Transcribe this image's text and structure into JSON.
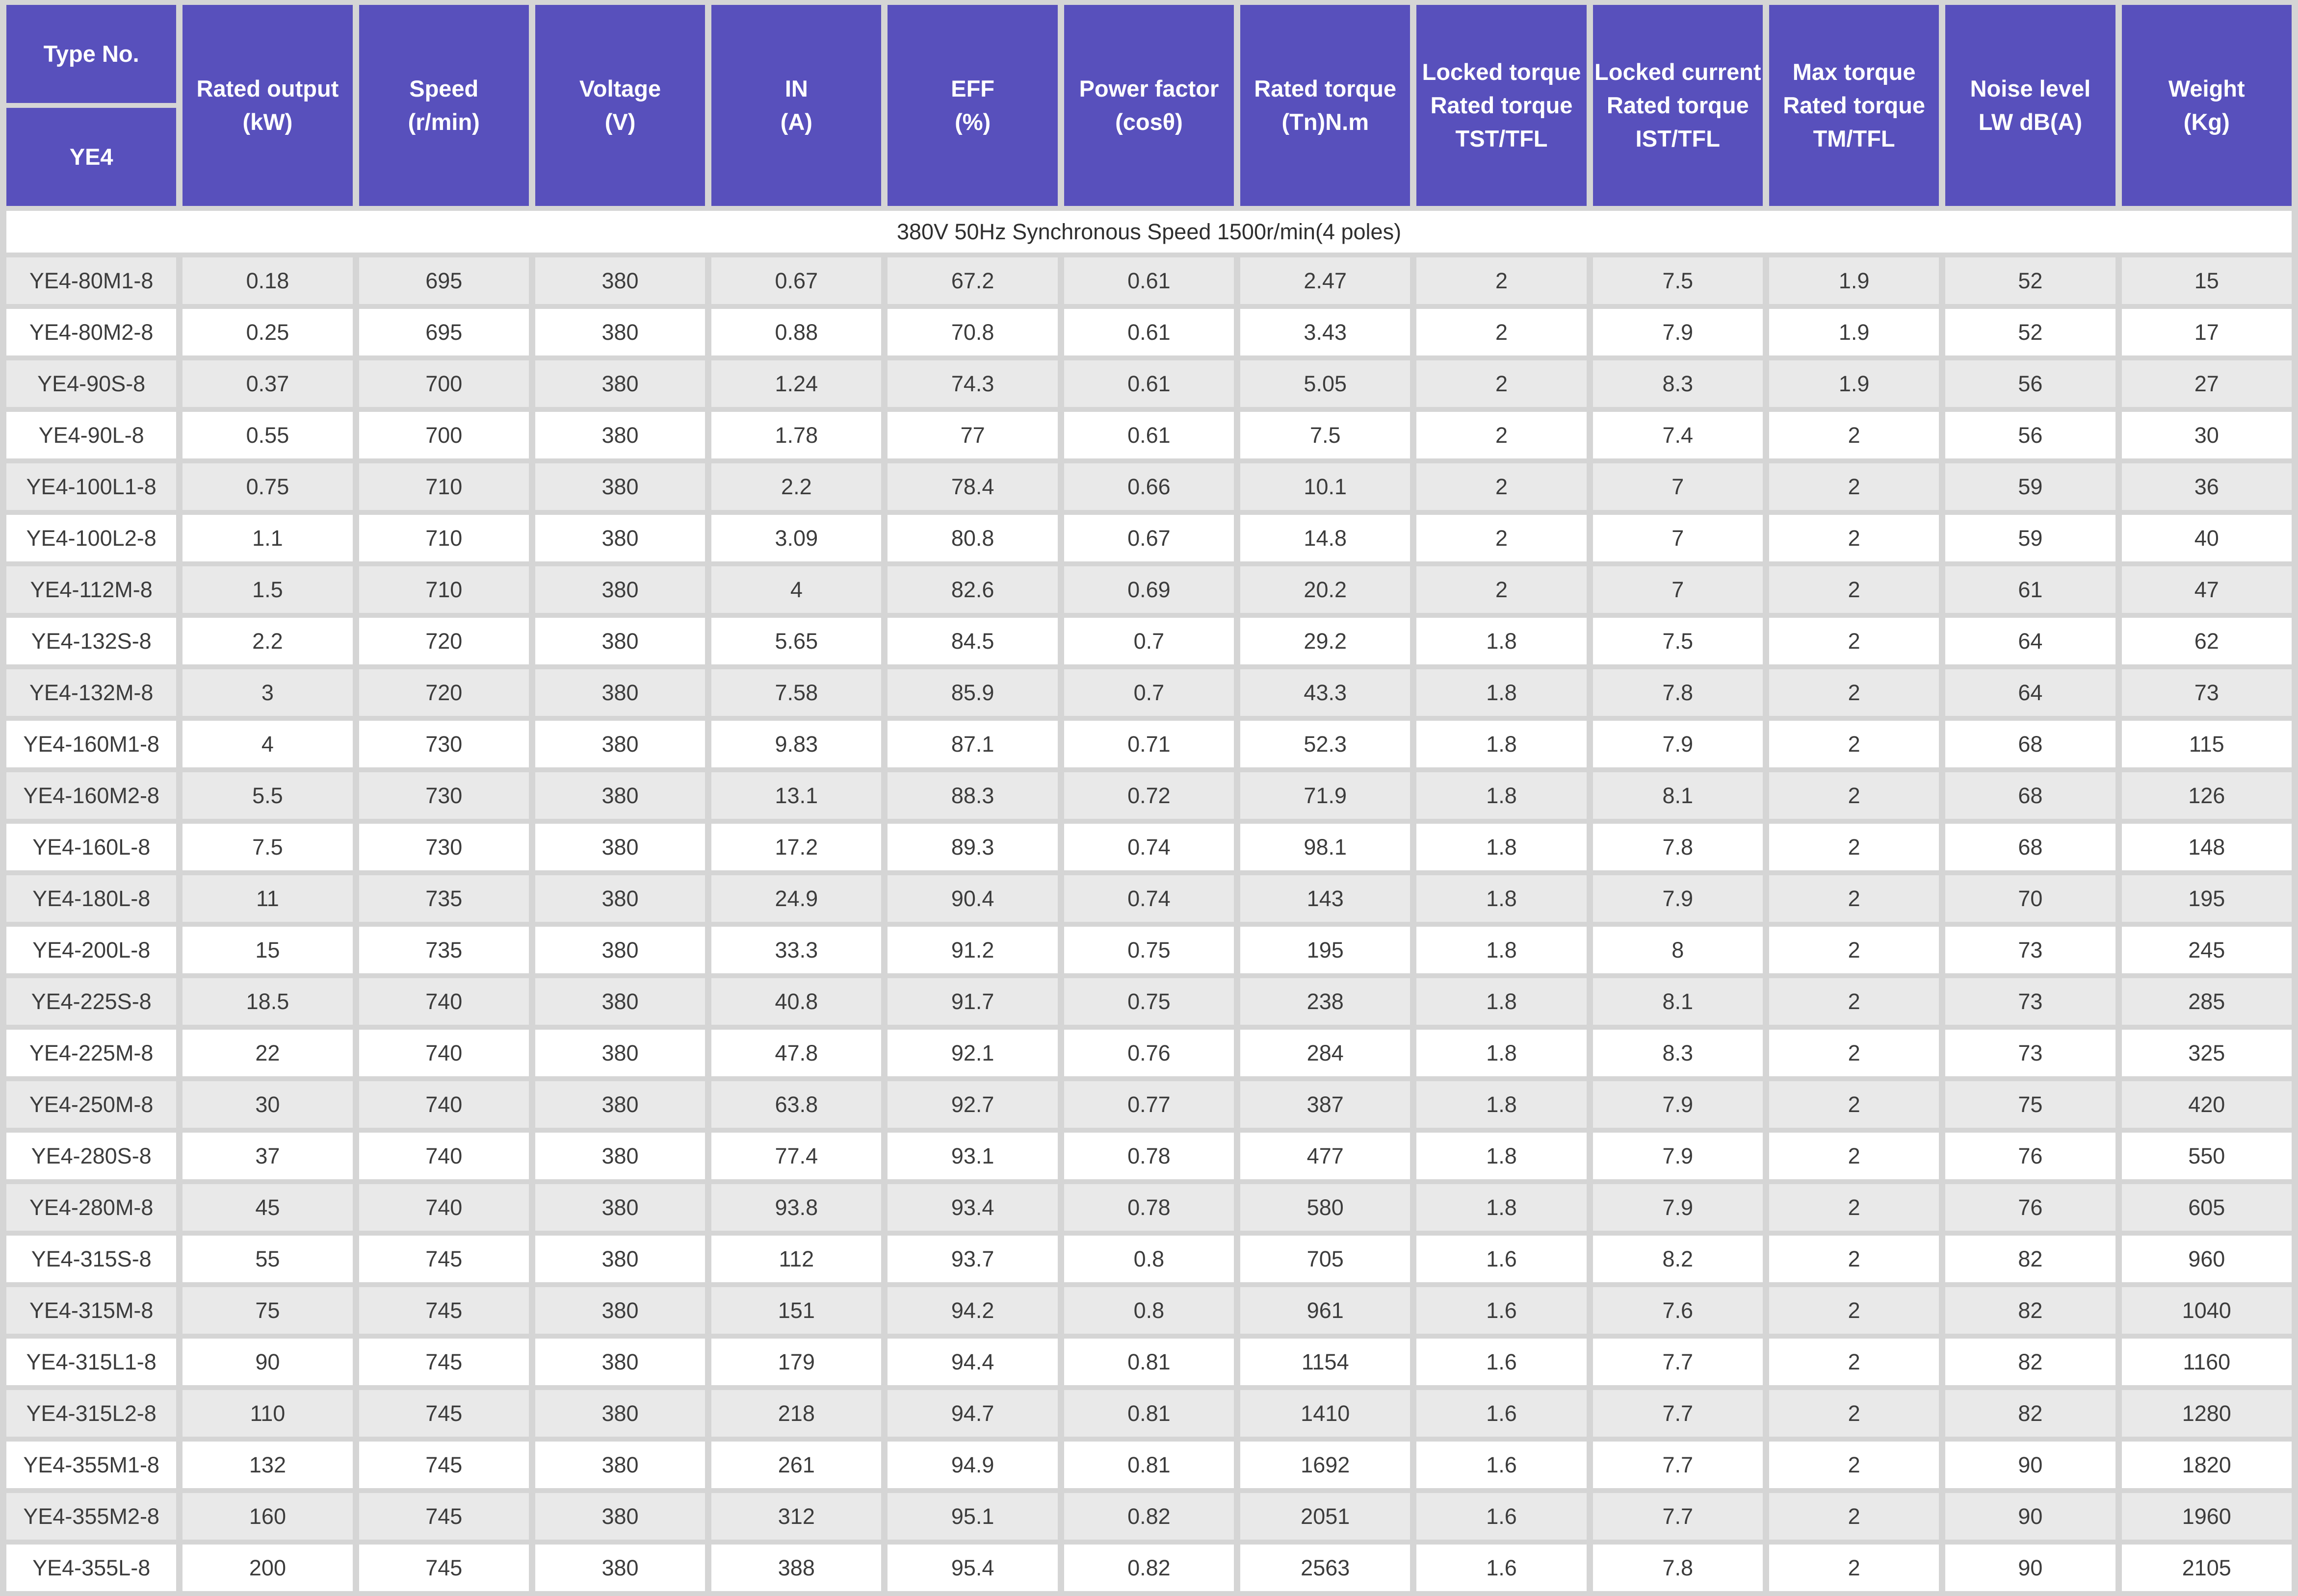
{
  "colors": {
    "header_bg": "#5850bc",
    "header_text": "#ffffff",
    "grid_bg": "#d5d5d5",
    "row_bg": "#ffffff",
    "row_alt_bg": "#e9e9e9",
    "text": "#3c3c3c",
    "subheader_text": "#2f2f2f"
  },
  "chart_data": {
    "type": "table",
    "header": {
      "type_no": "Type No.",
      "series": "YE4",
      "columns": [
        "Rated output\n(kW)",
        "Speed\n(r/min)",
        "Voltage\n(V)",
        "IN\n(A)",
        "EFF\n(%)",
        "Power factor\n(cosθ)",
        "Rated torque\n(Tn)N.m",
        "Locked torque\nRated torque\nTST/TFL",
        "Locked current\nRated torque\nIST/TFL",
        "Max torque\nRated torque\nTM/TFL",
        "Noise level\nLW dB(A)",
        "Weight\n(Kg)"
      ]
    },
    "band_title": "380V 50Hz Synchronous Speed 1500r/min(4 poles)",
    "rows": [
      {
        "type": "YE4-80M1-8",
        "values": [
          "0.18",
          "695",
          "380",
          "0.67",
          "67.2",
          "0.61",
          "2.47",
          "2",
          "7.5",
          "1.9",
          "52",
          "15"
        ]
      },
      {
        "type": "YE4-80M2-8",
        "values": [
          "0.25",
          "695",
          "380",
          "0.88",
          "70.8",
          "0.61",
          "3.43",
          "2",
          "7.9",
          "1.9",
          "52",
          "17"
        ]
      },
      {
        "type": "YE4-90S-8",
        "values": [
          "0.37",
          "700",
          "380",
          "1.24",
          "74.3",
          "0.61",
          "5.05",
          "2",
          "8.3",
          "1.9",
          "56",
          "27"
        ]
      },
      {
        "type": "YE4-90L-8",
        "values": [
          "0.55",
          "700",
          "380",
          "1.78",
          "77",
          "0.61",
          "7.5",
          "2",
          "7.4",
          "2",
          "56",
          "30"
        ]
      },
      {
        "type": "YE4-100L1-8",
        "values": [
          "0.75",
          "710",
          "380",
          "2.2",
          "78.4",
          "0.66",
          "10.1",
          "2",
          "7",
          "2",
          "59",
          "36"
        ]
      },
      {
        "type": "YE4-100L2-8",
        "values": [
          "1.1",
          "710",
          "380",
          "3.09",
          "80.8",
          "0.67",
          "14.8",
          "2",
          "7",
          "2",
          "59",
          "40"
        ]
      },
      {
        "type": "YE4-112M-8",
        "values": [
          "1.5",
          "710",
          "380",
          "4",
          "82.6",
          "0.69",
          "20.2",
          "2",
          "7",
          "2",
          "61",
          "47"
        ]
      },
      {
        "type": "YE4-132S-8",
        "values": [
          "2.2",
          "720",
          "380",
          "5.65",
          "84.5",
          "0.7",
          "29.2",
          "1.8",
          "7.5",
          "2",
          "64",
          "62"
        ]
      },
      {
        "type": "YE4-132M-8",
        "values": [
          "3",
          "720",
          "380",
          "7.58",
          "85.9",
          "0.7",
          "43.3",
          "1.8",
          "7.8",
          "2",
          "64",
          "73"
        ]
      },
      {
        "type": "YE4-160M1-8",
        "values": [
          "4",
          "730",
          "380",
          "9.83",
          "87.1",
          "0.71",
          "52.3",
          "1.8",
          "7.9",
          "2",
          "68",
          "115"
        ]
      },
      {
        "type": "YE4-160M2-8",
        "values": [
          "5.5",
          "730",
          "380",
          "13.1",
          "88.3",
          "0.72",
          "71.9",
          "1.8",
          "8.1",
          "2",
          "68",
          "126"
        ]
      },
      {
        "type": "YE4-160L-8",
        "values": [
          "7.5",
          "730",
          "380",
          "17.2",
          "89.3",
          "0.74",
          "98.1",
          "1.8",
          "7.8",
          "2",
          "68",
          "148"
        ]
      },
      {
        "type": "YE4-180L-8",
        "values": [
          "11",
          "735",
          "380",
          "24.9",
          "90.4",
          "0.74",
          "143",
          "1.8",
          "7.9",
          "2",
          "70",
          "195"
        ]
      },
      {
        "type": "YE4-200L-8",
        "values": [
          "15",
          "735",
          "380",
          "33.3",
          "91.2",
          "0.75",
          "195",
          "1.8",
          "8",
          "2",
          "73",
          "245"
        ]
      },
      {
        "type": "YE4-225S-8",
        "values": [
          "18.5",
          "740",
          "380",
          "40.8",
          "91.7",
          "0.75",
          "238",
          "1.8",
          "8.1",
          "2",
          "73",
          "285"
        ]
      },
      {
        "type": "YE4-225M-8",
        "values": [
          "22",
          "740",
          "380",
          "47.8",
          "92.1",
          "0.76",
          "284",
          "1.8",
          "8.3",
          "2",
          "73",
          "325"
        ]
      },
      {
        "type": "YE4-250M-8",
        "values": [
          "30",
          "740",
          "380",
          "63.8",
          "92.7",
          "0.77",
          "387",
          "1.8",
          "7.9",
          "2",
          "75",
          "420"
        ]
      },
      {
        "type": "YE4-280S-8",
        "values": [
          "37",
          "740",
          "380",
          "77.4",
          "93.1",
          "0.78",
          "477",
          "1.8",
          "7.9",
          "2",
          "76",
          "550"
        ]
      },
      {
        "type": "YE4-280M-8",
        "values": [
          "45",
          "740",
          "380",
          "93.8",
          "93.4",
          "0.78",
          "580",
          "1.8",
          "7.9",
          "2",
          "76",
          "605"
        ]
      },
      {
        "type": "YE4-315S-8",
        "values": [
          "55",
          "745",
          "380",
          "112",
          "93.7",
          "0.8",
          "705",
          "1.6",
          "8.2",
          "2",
          "82",
          "960"
        ]
      },
      {
        "type": "YE4-315M-8",
        "values": [
          "75",
          "745",
          "380",
          "151",
          "94.2",
          "0.8",
          "961",
          "1.6",
          "7.6",
          "2",
          "82",
          "1040"
        ]
      },
      {
        "type": "YE4-315L1-8",
        "values": [
          "90",
          "745",
          "380",
          "179",
          "94.4",
          "0.81",
          "1154",
          "1.6",
          "7.7",
          "2",
          "82",
          "1160"
        ]
      },
      {
        "type": "YE4-315L2-8",
        "values": [
          "110",
          "745",
          "380",
          "218",
          "94.7",
          "0.81",
          "1410",
          "1.6",
          "7.7",
          "2",
          "82",
          "1280"
        ]
      },
      {
        "type": "YE4-355M1-8",
        "values": [
          "132",
          "745",
          "380",
          "261",
          "94.9",
          "0.81",
          "1692",
          "1.6",
          "7.7",
          "2",
          "90",
          "1820"
        ]
      },
      {
        "type": "YE4-355M2-8",
        "values": [
          "160",
          "745",
          "380",
          "312",
          "95.1",
          "0.82",
          "2051",
          "1.6",
          "7.7",
          "2",
          "90",
          "1960"
        ]
      },
      {
        "type": "YE4-355L-8",
        "values": [
          "200",
          "745",
          "380",
          "388",
          "95.4",
          "0.82",
          "2563",
          "1.6",
          "7.8",
          "2",
          "90",
          "2105"
        ]
      }
    ]
  }
}
